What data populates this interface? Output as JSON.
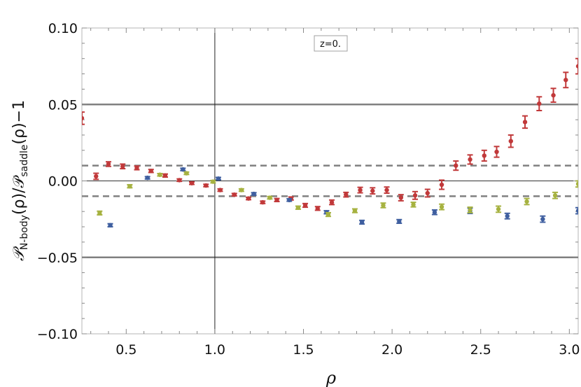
{
  "chart_data": {
    "type": "scatter",
    "title": "",
    "xlabel": "ρ",
    "ylabel": "𝒫N-body(ρ)/𝒫saddle(ρ)−1",
    "ylabel_parts": {
      "main1": "𝒫",
      "sub1": "N-body",
      "mid": "(ρ)/𝒫",
      "sub2": "saddle",
      "end": "(ρ)−1"
    },
    "annotation": "z=0.",
    "xlim": [
      0.25,
      3.05
    ],
    "ylim": [
      -0.1,
      0.1
    ],
    "x_ticks": [
      0.5,
      1.0,
      1.5,
      2.0,
      2.5,
      3.0
    ],
    "x_tick_labels": [
      "0.5",
      "1.0",
      "1.5",
      "2.0",
      "2.5",
      "3.0"
    ],
    "y_ticks": [
      -0.1,
      -0.05,
      0.0,
      0.05,
      0.1
    ],
    "y_tick_labels": [
      "−0.10",
      "−0.05",
      "0.00",
      "0.05",
      "0.10"
    ],
    "reference_lines": {
      "solid_y": [
        0.05,
        0.0,
        -0.05
      ],
      "dashed_y": [
        0.01,
        -0.01
      ],
      "vertical_x": [
        1.0
      ]
    },
    "colors": {
      "red": "#c1393a",
      "blue": "#3f5fa0",
      "green": "#a6b240",
      "ref_solid": "#808080",
      "ref_dashed": "#808080",
      "zero_line": "#333333"
    },
    "series": [
      {
        "color": "#c1393a",
        "points": [
          {
            "x": 0.25,
            "y": 0.041,
            "err": 0.004
          },
          {
            "x": 0.33,
            "y": 0.003,
            "err": 0.002
          },
          {
            "x": 0.4,
            "y": 0.011,
            "err": 0.0015
          },
          {
            "x": 0.48,
            "y": 0.0095,
            "err": 0.0015
          },
          {
            "x": 0.56,
            "y": 0.0085,
            "err": 0.0012
          },
          {
            "x": 0.64,
            "y": 0.0065,
            "err": 0.001
          },
          {
            "x": 0.72,
            "y": 0.0035,
            "err": 0.001
          },
          {
            "x": 0.8,
            "y": 0.0005,
            "err": 0.0008
          },
          {
            "x": 0.87,
            "y": -0.0015,
            "err": 0.0008
          },
          {
            "x": 0.95,
            "y": -0.003,
            "err": 0.0008
          },
          {
            "x": 1.03,
            "y": -0.006,
            "err": 0.0008
          },
          {
            "x": 1.11,
            "y": -0.009,
            "err": 0.0008
          },
          {
            "x": 1.19,
            "y": -0.0115,
            "err": 0.0008
          },
          {
            "x": 1.27,
            "y": -0.014,
            "err": 0.0008
          },
          {
            "x": 1.35,
            "y": -0.0125,
            "err": 0.001
          },
          {
            "x": 1.43,
            "y": -0.0115,
            "err": 0.001
          },
          {
            "x": 1.51,
            "y": -0.016,
            "err": 0.0012
          },
          {
            "x": 1.58,
            "y": -0.018,
            "err": 0.0012
          },
          {
            "x": 1.66,
            "y": -0.014,
            "err": 0.0015
          },
          {
            "x": 1.74,
            "y": -0.009,
            "err": 0.0015
          },
          {
            "x": 1.82,
            "y": -0.006,
            "err": 0.0018
          },
          {
            "x": 1.89,
            "y": -0.0065,
            "err": 0.002
          },
          {
            "x": 1.97,
            "y": -0.006,
            "err": 0.002
          },
          {
            "x": 2.05,
            "y": -0.011,
            "err": 0.002
          },
          {
            "x": 2.13,
            "y": -0.0095,
            "err": 0.0025
          },
          {
            "x": 2.2,
            "y": -0.008,
            "err": 0.0025
          },
          {
            "x": 2.28,
            "y": -0.0025,
            "err": 0.003
          },
          {
            "x": 2.36,
            "y": 0.01,
            "err": 0.003
          },
          {
            "x": 2.44,
            "y": 0.014,
            "err": 0.003
          },
          {
            "x": 2.52,
            "y": 0.0165,
            "err": 0.0035
          },
          {
            "x": 2.59,
            "y": 0.019,
            "err": 0.0035
          },
          {
            "x": 2.67,
            "y": 0.026,
            "err": 0.004
          },
          {
            "x": 2.75,
            "y": 0.0385,
            "err": 0.004
          },
          {
            "x": 2.83,
            "y": 0.0505,
            "err": 0.0045
          },
          {
            "x": 2.91,
            "y": 0.056,
            "err": 0.0045
          },
          {
            "x": 2.98,
            "y": 0.066,
            "err": 0.005
          },
          {
            "x": 3.05,
            "y": 0.075,
            "err": 0.005
          }
        ]
      },
      {
        "color": "#3f5fa0",
        "points": [
          {
            "x": 0.41,
            "y": -0.029,
            "err": 0.001
          },
          {
            "x": 0.62,
            "y": 0.002,
            "err": 0.0008
          },
          {
            "x": 0.82,
            "y": 0.0075,
            "err": 0.0008
          },
          {
            "x": 1.02,
            "y": 0.0015,
            "err": 0.0008
          },
          {
            "x": 1.22,
            "y": -0.0085,
            "err": 0.0008
          },
          {
            "x": 1.42,
            "y": -0.0125,
            "err": 0.0008
          },
          {
            "x": 1.63,
            "y": -0.0205,
            "err": 0.001
          },
          {
            "x": 1.83,
            "y": -0.027,
            "err": 0.0012
          },
          {
            "x": 2.04,
            "y": -0.0265,
            "err": 0.0012
          },
          {
            "x": 2.24,
            "y": -0.0205,
            "err": 0.0015
          },
          {
            "x": 2.44,
            "y": -0.0195,
            "err": 0.0018
          },
          {
            "x": 2.65,
            "y": -0.023,
            "err": 0.0018
          },
          {
            "x": 2.85,
            "y": -0.025,
            "err": 0.002
          },
          {
            "x": 3.05,
            "y": -0.0195,
            "err": 0.002
          }
        ]
      },
      {
        "color": "#a6b240",
        "points": [
          {
            "x": 0.35,
            "y": -0.021,
            "err": 0.0012
          },
          {
            "x": 0.52,
            "y": -0.0035,
            "err": 0.001
          },
          {
            "x": 0.69,
            "y": 0.004,
            "err": 0.0008
          },
          {
            "x": 0.84,
            "y": 0.005,
            "err": 0.0008
          },
          {
            "x": 0.99,
            "y": -0.0005,
            "err": 0.0008
          },
          {
            "x": 1.15,
            "y": -0.006,
            "err": 0.0008
          },
          {
            "x": 1.31,
            "y": -0.011,
            "err": 0.0008
          },
          {
            "x": 1.47,
            "y": -0.0175,
            "err": 0.001
          },
          {
            "x": 1.64,
            "y": -0.022,
            "err": 0.0012
          },
          {
            "x": 1.79,
            "y": -0.0195,
            "err": 0.0012
          },
          {
            "x": 1.95,
            "y": -0.016,
            "err": 0.0015
          },
          {
            "x": 2.12,
            "y": -0.0155,
            "err": 0.0015
          },
          {
            "x": 2.28,
            "y": -0.017,
            "err": 0.0018
          },
          {
            "x": 2.44,
            "y": -0.019,
            "err": 0.0018
          },
          {
            "x": 2.6,
            "y": -0.0185,
            "err": 0.002
          },
          {
            "x": 2.76,
            "y": -0.0135,
            "err": 0.002
          },
          {
            "x": 2.92,
            "y": -0.0095,
            "err": 0.002
          },
          {
            "x": 3.05,
            "y": -0.002,
            "err": 0.002
          }
        ]
      }
    ]
  }
}
